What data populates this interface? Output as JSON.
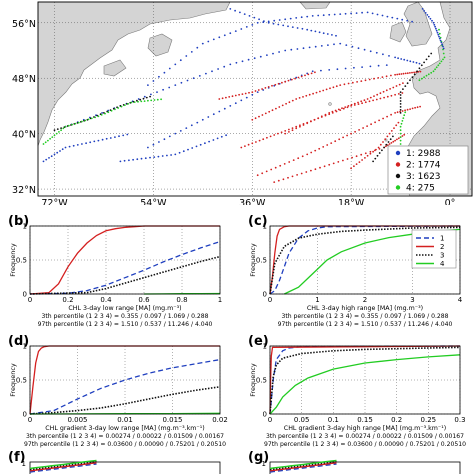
{
  "map": {
    "lat_labels": [
      "56°N",
      "48°N",
      "40°N",
      "32°N"
    ],
    "lat_values": [
      56,
      48,
      40,
      32
    ],
    "lon_labels": [
      "72°W",
      "54°W",
      "36°W",
      "18°W",
      "0°"
    ],
    "lon_values": [
      -72,
      -54,
      -36,
      -18,
      0
    ],
    "extent": {
      "lon": [
        -75,
        4
      ],
      "lat": [
        31,
        59
      ]
    },
    "legend": [
      {
        "label": "1: 2988",
        "color": "#1f3fbf"
      },
      {
        "label": "2: 1774",
        "color": "#d42020"
      },
      {
        "label": "3: 1623",
        "color": "#111111"
      },
      {
        "label": "4: 275",
        "color": "#22cc22"
      }
    ],
    "colors": {
      "land": "#d4d4d4",
      "coast": "#7a7a7a"
    }
  },
  "panels": [
    {
      "id": "b",
      "label": "(b)",
      "ylabel": "Frequency",
      "xlabel": "CHL 3-day low range [MA] (mg.m⁻³)",
      "xticks": [
        "0",
        "0.2",
        "0.4",
        "0.6",
        "0.8",
        "1"
      ],
      "xmax": 1,
      "stats": [
        "3th percentile (1  2  3  4) = 0.355 / 0.097 / 1.069 / 0.288",
        "97th percentile (1  2  3  4) = 1.510 / 0.537 / 11.246 / 4.040"
      ]
    },
    {
      "id": "c",
      "label": "(c)",
      "ylabel": "Frequency",
      "xlabel": "CHL 3-day high range [MA] (mg.m⁻³)",
      "xticks": [
        "0",
        "1",
        "2",
        "3",
        "4"
      ],
      "xmax": 4,
      "stats": [
        "3th percentile (1  2  3  4) = 0.355 / 0.097 / 1.069 / 0.288",
        "97th percentile (1  2  3  4) = 1.510 / 0.537 / 11.246 / 4.040"
      ],
      "legend": [
        "1",
        "2",
        "3",
        "4"
      ]
    },
    {
      "id": "d",
      "label": "(d)",
      "ylabel": "Frequency",
      "xlabel": "CHL gradient 3-day low range [MA] (mg.m⁻³.km⁻¹)",
      "xticks": [
        "0",
        "0.005",
        "0.01",
        "0.015",
        "0.02"
      ],
      "xmax": 0.02,
      "stats": [
        "3th percentile (1  2  3  4) = 0.00274 / 0.00022 / 0.01509 / 0.00167",
        "97th percentile (1  2  3  4) = 0.03600 / 0.00090 / 0.75201 / 0.20510"
      ]
    },
    {
      "id": "e",
      "label": "(e)",
      "ylabel": "Frequency",
      "xlabel": "CHL gradient 3-day high range [MA] (mg.m⁻³.km⁻¹)",
      "xticks": [
        "0",
        "0.05",
        "0.1",
        "0.15",
        "0.2",
        "0.25",
        "0.3"
      ],
      "xmax": 0.3,
      "stats": [
        "3th percentile (1  2  3  4) = 0.00274 / 0.00022 / 0.01509 / 0.00167",
        "97th percentile (1  2  3  4) = 0.03600 / 0.00090 / 0.75201 / 0.20510"
      ]
    },
    {
      "id": "f",
      "label": "(f)"
    },
    {
      "id": "g",
      "label": "(g)"
    }
  ],
  "yticks": [
    "0",
    "0.5",
    "1"
  ],
  "series_colors": [
    "#1f3fbf",
    "#d42020",
    "#111111",
    "#22cc22"
  ],
  "chart_data": [
    {
      "type": "line",
      "panel": "b",
      "ylim": [
        0,
        1
      ],
      "xlim": [
        0,
        1
      ],
      "xlabel": "CHL 3-day low range [MA] (mg.m⁻³)",
      "ylabel": "Frequency",
      "series": [
        {
          "name": "1",
          "x": [
            0,
            0.2,
            0.3,
            0.4,
            0.5,
            0.6,
            0.7,
            0.8,
            0.9,
            1.0
          ],
          "y": [
            0,
            0.01,
            0.05,
            0.13,
            0.24,
            0.35,
            0.47,
            0.58,
            0.68,
            0.77
          ]
        },
        {
          "name": "2",
          "x": [
            0,
            0.1,
            0.15,
            0.2,
            0.25,
            0.3,
            0.35,
            0.4,
            0.45,
            0.5,
            0.55,
            0.6,
            1.0
          ],
          "y": [
            0,
            0.02,
            0.15,
            0.4,
            0.6,
            0.75,
            0.86,
            0.93,
            0.96,
            0.98,
            0.99,
            1.0,
            1.0
          ]
        },
        {
          "name": "3",
          "x": [
            0,
            0.3,
            0.4,
            0.5,
            0.6,
            0.7,
            0.8,
            0.9,
            1.0
          ],
          "y": [
            0,
            0.02,
            0.08,
            0.16,
            0.24,
            0.32,
            0.4,
            0.48,
            0.55
          ]
        },
        {
          "name": "4",
          "x": [
            0.6,
            0.7,
            0.8,
            0.9,
            1.0
          ],
          "y": [
            0,
            0.002,
            0.004,
            0.006,
            0.008
          ]
        }
      ]
    },
    {
      "type": "line",
      "panel": "c",
      "ylim": [
        0,
        1
      ],
      "xlim": [
        0,
        4
      ],
      "xlabel": "CHL 3-day high range [MA] (mg.m⁻³)",
      "ylabel": "Frequency",
      "series": [
        {
          "name": "1",
          "x": [
            0,
            0.1,
            0.2,
            0.3,
            0.4,
            0.6,
            0.8,
            1.0,
            1.2,
            4
          ],
          "y": [
            0,
            0.05,
            0.2,
            0.4,
            0.6,
            0.82,
            0.93,
            0.97,
            0.99,
            1.0
          ]
        },
        {
          "name": "2",
          "x": [
            0,
            0.05,
            0.1,
            0.15,
            0.2,
            0.3,
            0.4,
            4
          ],
          "y": [
            0,
            0.25,
            0.6,
            0.85,
            0.95,
            0.99,
            1.0,
            1.0
          ]
        },
        {
          "name": "3",
          "x": [
            0,
            0.1,
            0.3,
            0.6,
            1.0,
            1.5,
            2.0,
            3.0,
            4.0
          ],
          "y": [
            0,
            0.45,
            0.7,
            0.82,
            0.88,
            0.92,
            0.94,
            0.97,
            0.98
          ]
        },
        {
          "name": "4",
          "x": [
            0.3,
            0.6,
            0.9,
            1.2,
            1.5,
            2.0,
            2.5,
            3.0,
            3.5,
            4.0
          ],
          "y": [
            0,
            0.1,
            0.3,
            0.5,
            0.62,
            0.75,
            0.83,
            0.88,
            0.92,
            0.95
          ]
        }
      ]
    },
    {
      "type": "line",
      "panel": "d",
      "ylim": [
        0,
        1
      ],
      "xlim": [
        0,
        0.02
      ],
      "xlabel": "CHL gradient 3-day low range [MA] (mg.m⁻³.km⁻¹)",
      "ylabel": "Frequency",
      "series": [
        {
          "name": "1",
          "x": [
            0,
            0.0025,
            0.005,
            0.0075,
            0.01,
            0.0125,
            0.015,
            0.0175,
            0.02
          ],
          "y": [
            0,
            0.05,
            0.22,
            0.38,
            0.5,
            0.6,
            0.68,
            0.74,
            0.8
          ]
        },
        {
          "name": "2",
          "x": [
            0,
            0.0003,
            0.0006,
            0.0009,
            0.0012,
            0.0015,
            0.002,
            0.02
          ],
          "y": [
            0,
            0.4,
            0.75,
            0.92,
            0.97,
            0.99,
            1.0,
            1.0
          ]
        },
        {
          "name": "3",
          "x": [
            0,
            0.0025,
            0.005,
            0.0075,
            0.01,
            0.0125,
            0.015,
            0.0175,
            0.02
          ],
          "y": [
            0,
            0.02,
            0.05,
            0.09,
            0.15,
            0.22,
            0.29,
            0.35,
            0.4
          ]
        },
        {
          "name": "4",
          "x": [
            0,
            0.005,
            0.01,
            0.015,
            0.02
          ],
          "y": [
            0,
            0.002,
            0.004,
            0.006,
            0.01
          ]
        }
      ]
    },
    {
      "type": "line",
      "panel": "e",
      "ylim": [
        0,
        1
      ],
      "xlim": [
        0,
        0.3
      ],
      "xlabel": "CHL gradient 3-day high range [MA] (mg.m⁻³.km⁻¹)",
      "ylabel": "Frequency",
      "series": [
        {
          "name": "1",
          "x": [
            0,
            0.005,
            0.01,
            0.02,
            0.03,
            0.05,
            0.3
          ],
          "y": [
            0,
            0.5,
            0.8,
            0.93,
            0.97,
            0.99,
            1.0
          ]
        },
        {
          "name": "2",
          "x": [
            0,
            0.001,
            0.002,
            0.004,
            0.3
          ],
          "y": [
            0,
            0.5,
            0.85,
            0.98,
            1.0
          ]
        },
        {
          "name": "3",
          "x": [
            0,
            0.005,
            0.01,
            0.02,
            0.05,
            0.1,
            0.15,
            0.2,
            0.25,
            0.3
          ],
          "y": [
            0,
            0.55,
            0.72,
            0.82,
            0.89,
            0.93,
            0.95,
            0.96,
            0.97,
            0.98
          ]
        },
        {
          "name": "4",
          "x": [
            0,
            0.01,
            0.02,
            0.04,
            0.06,
            0.1,
            0.15,
            0.2,
            0.25,
            0.3
          ],
          "y": [
            0,
            0.1,
            0.25,
            0.42,
            0.53,
            0.66,
            0.75,
            0.8,
            0.84,
            0.87
          ]
        }
      ]
    }
  ]
}
